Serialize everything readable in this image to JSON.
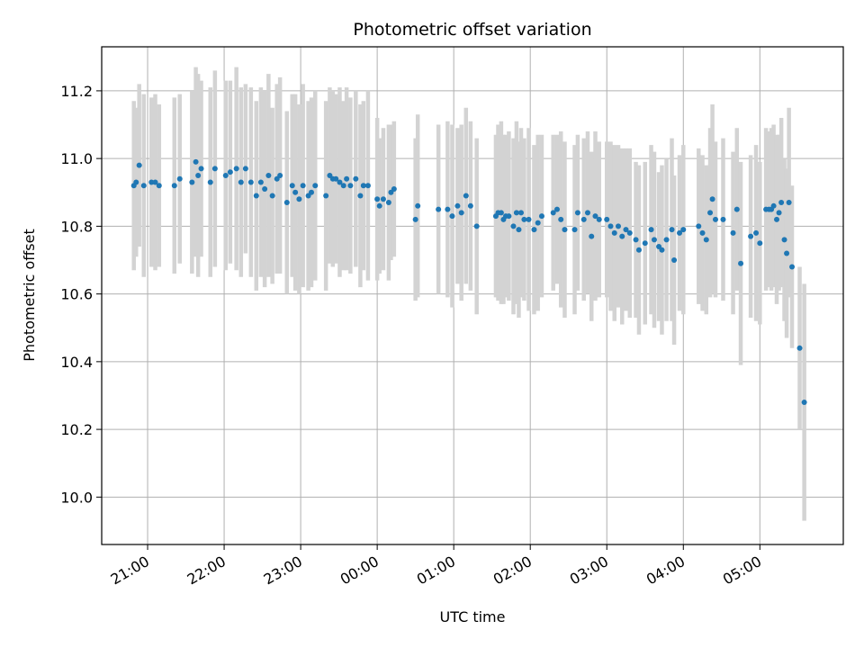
{
  "chart_data": {
    "type": "scatter",
    "title": "Photometric offset variation",
    "xlabel": "UTC time",
    "ylabel": "Photometric offset",
    "x_tick_labels": [
      "21:00",
      "22:00",
      "23:00",
      "00:00",
      "01:00",
      "02:00",
      "03:00",
      "04:00",
      "05:00"
    ],
    "y_tick_labels": [
      "10.0",
      "10.2",
      "10.4",
      "10.6",
      "10.8",
      "11.0",
      "11.2"
    ],
    "x_unit": "hours since 21:00 UTC",
    "xlim": [
      -0.6,
      9.09
    ],
    "ylim": [
      9.86,
      11.33
    ],
    "y_ticks": [
      10.0,
      10.2,
      10.4,
      10.6,
      10.8,
      11.0,
      11.2
    ],
    "grid": true,
    "error_bar_color": "#d3d3d3",
    "marker_color": "#1f77b4",
    "points": [
      [
        -0.18,
        10.92,
        0.25
      ],
      [
        -0.15,
        10.93,
        0.22
      ],
      [
        -0.11,
        10.98,
        0.24
      ],
      [
        -0.05,
        10.92,
        0.27
      ],
      [
        0.05,
        10.93,
        0.25
      ],
      [
        0.1,
        10.93,
        0.26
      ],
      [
        0.15,
        10.92,
        0.24
      ],
      [
        0.35,
        10.92,
        0.26
      ],
      [
        0.42,
        10.94,
        0.25
      ],
      [
        0.58,
        10.93,
        0.27
      ],
      [
        0.63,
        10.99,
        0.28
      ],
      [
        0.66,
        10.95,
        0.3
      ],
      [
        0.7,
        10.97,
        0.26
      ],
      [
        0.82,
        10.93,
        0.28
      ],
      [
        0.88,
        10.97,
        0.29
      ],
      [
        1.02,
        10.95,
        0.28
      ],
      [
        1.08,
        10.96,
        0.27
      ],
      [
        1.16,
        10.97,
        0.3
      ],
      [
        1.22,
        10.93,
        0.28
      ],
      [
        1.28,
        10.97,
        0.25
      ],
      [
        1.35,
        10.93,
        0.28
      ],
      [
        1.42,
        10.89,
        0.28
      ],
      [
        1.48,
        10.93,
        0.28
      ],
      [
        1.53,
        10.91,
        0.29
      ],
      [
        1.58,
        10.95,
        0.3
      ],
      [
        1.63,
        10.89,
        0.26
      ],
      [
        1.69,
        10.94,
        0.28
      ],
      [
        1.73,
        10.95,
        0.29
      ],
      [
        1.82,
        10.87,
        0.27
      ],
      [
        1.89,
        10.92,
        0.27
      ],
      [
        1.93,
        10.9,
        0.29
      ],
      [
        1.98,
        10.88,
        0.28
      ],
      [
        2.03,
        10.92,
        0.3
      ],
      [
        2.1,
        10.89,
        0.28
      ],
      [
        2.14,
        10.9,
        0.28
      ],
      [
        2.19,
        10.92,
        0.28
      ],
      [
        2.33,
        10.89,
        0.28
      ],
      [
        2.38,
        10.95,
        0.26
      ],
      [
        2.42,
        10.94,
        0.26
      ],
      [
        2.46,
        10.94,
        0.25
      ],
      [
        2.51,
        10.93,
        0.28
      ],
      [
        2.56,
        10.92,
        0.25
      ],
      [
        2.6,
        10.94,
        0.27
      ],
      [
        2.65,
        10.92,
        0.26
      ],
      [
        2.72,
        10.94,
        0.26
      ],
      [
        2.78,
        10.89,
        0.27
      ],
      [
        2.82,
        10.92,
        0.25
      ],
      [
        2.88,
        10.92,
        0.28
      ],
      [
        3.0,
        10.88,
        0.24
      ],
      [
        3.03,
        10.86,
        0.2
      ],
      [
        3.08,
        10.88,
        0.21
      ],
      [
        3.15,
        10.87,
        0.23
      ],
      [
        3.18,
        10.9,
        0.2
      ],
      [
        3.22,
        10.91,
        0.2
      ],
      [
        3.5,
        10.82,
        0.24
      ],
      [
        3.53,
        10.86,
        0.27
      ],
      [
        3.8,
        10.85,
        0.25
      ],
      [
        3.92,
        10.85,
        0.26
      ],
      [
        3.98,
        10.83,
        0.27
      ],
      [
        4.05,
        10.86,
        0.23
      ],
      [
        4.1,
        10.84,
        0.26
      ],
      [
        4.16,
        10.89,
        0.26
      ],
      [
        4.22,
        10.86,
        0.25
      ],
      [
        4.3,
        10.8,
        0.26
      ],
      [
        4.55,
        10.83,
        0.24
      ],
      [
        4.58,
        10.84,
        0.26
      ],
      [
        4.62,
        10.84,
        0.27
      ],
      [
        4.65,
        10.82,
        0.25
      ],
      [
        4.68,
        10.83,
        0.24
      ],
      [
        4.72,
        10.83,
        0.25
      ],
      [
        4.78,
        10.8,
        0.26
      ],
      [
        4.82,
        10.84,
        0.27
      ],
      [
        4.85,
        10.79,
        0.26
      ],
      [
        4.88,
        10.84,
        0.25
      ],
      [
        4.92,
        10.82,
        0.24
      ],
      [
        4.98,
        10.82,
        0.27
      ],
      [
        5.05,
        10.79,
        0.25
      ],
      [
        5.1,
        10.81,
        0.26
      ],
      [
        5.15,
        10.83,
        0.24
      ],
      [
        5.3,
        10.84,
        0.23
      ],
      [
        5.35,
        10.85,
        0.22
      ],
      [
        5.4,
        10.82,
        0.26
      ],
      [
        5.45,
        10.79,
        0.26
      ],
      [
        5.58,
        10.79,
        0.25
      ],
      [
        5.62,
        10.84,
        0.23
      ],
      [
        5.7,
        10.82,
        0.24
      ],
      [
        5.75,
        10.84,
        0.24
      ],
      [
        5.8,
        10.77,
        0.25
      ],
      [
        5.85,
        10.83,
        0.25
      ],
      [
        5.9,
        10.82,
        0.23
      ],
      [
        6.0,
        10.82,
        0.23
      ],
      [
        6.05,
        10.8,
        0.25
      ],
      [
        6.1,
        10.78,
        0.26
      ],
      [
        6.15,
        10.8,
        0.24
      ],
      [
        6.2,
        10.77,
        0.26
      ],
      [
        6.25,
        10.79,
        0.24
      ],
      [
        6.3,
        10.78,
        0.25
      ],
      [
        6.38,
        10.76,
        0.23
      ],
      [
        6.42,
        10.73,
        0.25
      ],
      [
        6.5,
        10.75,
        0.24
      ],
      [
        6.58,
        10.79,
        0.25
      ],
      [
        6.62,
        10.76,
        0.26
      ],
      [
        6.68,
        10.74,
        0.22
      ],
      [
        6.72,
        10.73,
        0.25
      ],
      [
        6.78,
        10.76,
        0.24
      ],
      [
        6.85,
        10.79,
        0.27
      ],
      [
        6.88,
        10.7,
        0.25
      ],
      [
        6.95,
        10.78,
        0.23
      ],
      [
        7.0,
        10.79,
        0.25
      ],
      [
        7.2,
        10.8,
        0.23
      ],
      [
        7.25,
        10.78,
        0.23
      ],
      [
        7.3,
        10.76,
        0.22
      ],
      [
        7.35,
        10.84,
        0.25
      ],
      [
        7.38,
        10.88,
        0.28
      ],
      [
        7.42,
        10.82,
        0.23
      ],
      [
        7.52,
        10.82,
        0.24
      ],
      [
        7.65,
        10.78,
        0.24
      ],
      [
        7.7,
        10.85,
        0.24
      ],
      [
        7.75,
        10.69,
        0.3
      ],
      [
        7.88,
        10.77,
        0.24
      ],
      [
        7.95,
        10.78,
        0.26
      ],
      [
        8.0,
        10.75,
        0.24
      ],
      [
        8.08,
        10.85,
        0.24
      ],
      [
        8.12,
        10.85,
        0.23
      ],
      [
        8.15,
        10.85,
        0.24
      ],
      [
        8.18,
        10.86,
        0.24
      ],
      [
        8.22,
        10.82,
        0.25
      ],
      [
        8.25,
        10.84,
        0.23
      ],
      [
        8.28,
        10.87,
        0.25
      ],
      [
        8.32,
        10.76,
        0.24
      ],
      [
        8.35,
        10.72,
        0.25
      ],
      [
        8.38,
        10.87,
        0.28
      ],
      [
        8.42,
        10.68,
        0.24
      ],
      [
        8.52,
        10.44,
        0.24
      ],
      [
        8.58,
        10.28,
        0.35
      ]
    ]
  }
}
